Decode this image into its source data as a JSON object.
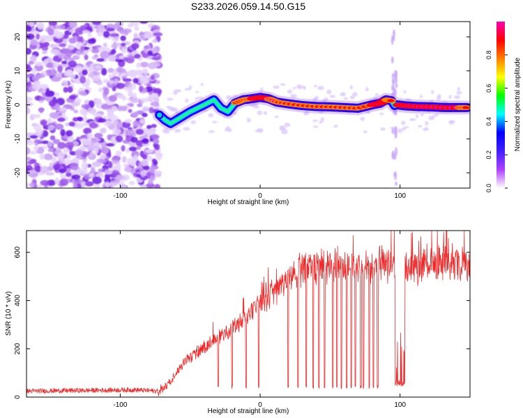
{
  "page_title": "S233.2026.059.14.50.G15",
  "colors": {
    "trace": "#ee2a2a",
    "noise": "#8a2be2",
    "frame": "#000000",
    "background": "#ffffff"
  },
  "chart_data": [
    {
      "type": "heatmap",
      "title": "S233.2026.059.14.50.G15",
      "xlabel": "Height of straight line (km)",
      "ylabel": "Frequency (Hz)",
      "xlim": [
        -167,
        150
      ],
      "ylim": [
        -24.5,
        24.5
      ],
      "xticks": [
        -100,
        0,
        100
      ],
      "yticks": [
        -20,
        -10,
        0,
        10,
        20
      ],
      "noise_region": [
        -167,
        -72
      ],
      "noise_spike_x": 96,
      "colorbar": {
        "label": "Normalized spectral amplitude",
        "range": [
          0,
          1
        ],
        "ticks": [
          0,
          0.2,
          0.4,
          0.6,
          0.8
        ],
        "tick_labels": [
          "0.0",
          "0.2",
          "0.4",
          "0.6",
          "0.8"
        ],
        "colormap": [
          "#ffffff",
          "#b040ff",
          "#4020ff",
          "#0000ff",
          "#00ffff",
          "#00ff00",
          "#ffff00",
          "#ff8000",
          "#ff0000",
          "#ff00b0"
        ]
      },
      "ridge": {
        "x": [
          -72,
          -68,
          -64,
          -58,
          -50,
          -40,
          -33,
          -28,
          -23,
          -18,
          -12,
          -6,
          0,
          6,
          12,
          20,
          30,
          40,
          50,
          60,
          70,
          80,
          86,
          90,
          94,
          96,
          98,
          104,
          112,
          122,
          132,
          142,
          148
        ],
        "y": [
          -3,
          -4.5,
          -5.5,
          -4,
          -2,
          0,
          1.5,
          -1,
          -2,
          0.5,
          1.5,
          1.8,
          2.2,
          1.8,
          0.8,
          0.3,
          -0.2,
          -0.5,
          -0.6,
          -0.8,
          -1,
          0,
          0.5,
          1.5,
          1.2,
          -0.2,
          0,
          -0.3,
          -0.5,
          -0.6,
          -0.8,
          -0.8,
          -0.8
        ],
        "strength": [
          0.45,
          0.4,
          0.5,
          0.55,
          0.5,
          0.45,
          0.6,
          0.4,
          0.35,
          0.65,
          0.8,
          0.85,
          0.9,
          0.85,
          0.8,
          0.75,
          0.75,
          0.7,
          0.8,
          0.75,
          0.7,
          0.8,
          0.9,
          0.85,
          0.6,
          0.5,
          0.8,
          0.95,
          0.9,
          0.85,
          0.95,
          0.85,
          0.6
        ]
      }
    },
    {
      "type": "line",
      "xlabel": "Height of straight line (km)",
      "ylabel": "SNR (10 * v/v)",
      "xlim": [
        -167,
        150
      ],
      "ylim": [
        0,
        690
      ],
      "xticks": [
        -100,
        0,
        100
      ],
      "yticks": [
        0,
        200,
        400,
        600
      ],
      "series": [
        {
          "name": "SNR",
          "color": "#ee2a2a",
          "envelope_x": [
            -167,
            -90,
            -73,
            -63,
            -55,
            -45,
            -35,
            -25,
            -15,
            -5,
            5,
            15,
            25,
            35,
            50,
            70,
            90,
            110,
            130,
            150
          ],
          "envelope_y": [
            25,
            30,
            25,
            80,
            150,
            200,
            250,
            280,
            330,
            390,
            440,
            500,
            560,
            580,
            580,
            580,
            590,
            580,
            600,
            600
          ],
          "dropouts_x": [
            -30,
            -20,
            -10,
            -1,
            20,
            27,
            33,
            38,
            42,
            46,
            52,
            55,
            58,
            62,
            65,
            68,
            72,
            74,
            78,
            81,
            84,
            97,
            98,
            99,
            100,
            101,
            102,
            103
          ]
        }
      ]
    }
  ]
}
